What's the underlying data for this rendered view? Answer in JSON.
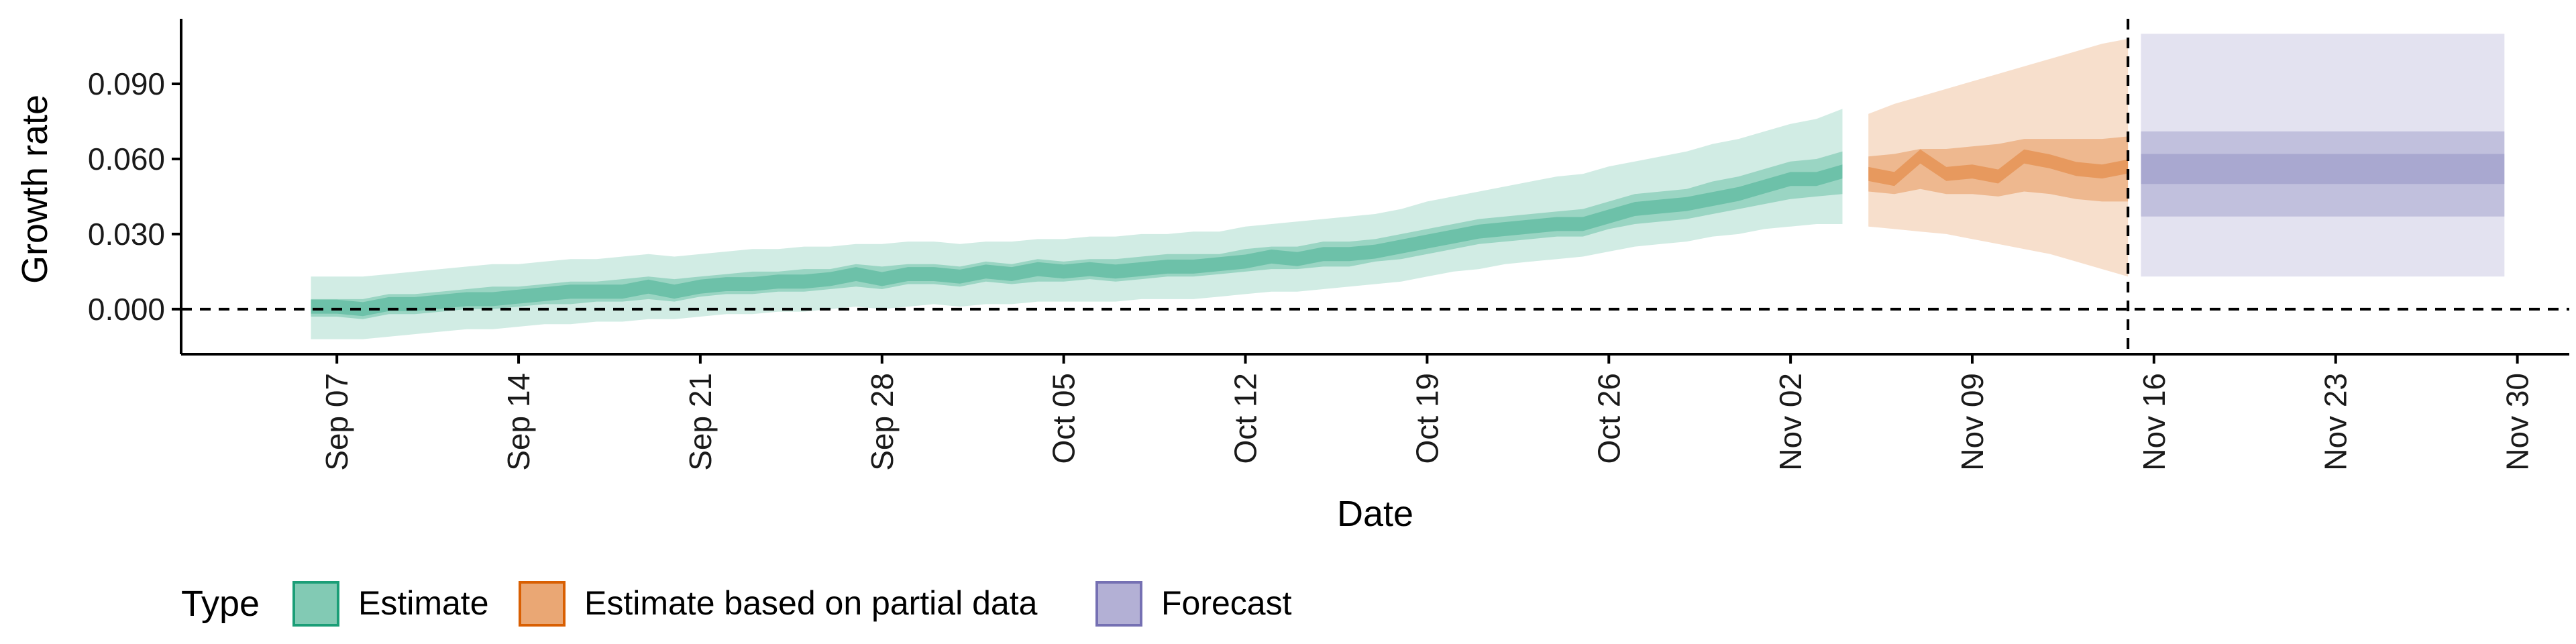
{
  "chart_data": {
    "type": "area",
    "title": "",
    "xlabel": "Date",
    "ylabel": "Growth rate",
    "x_range": [
      "2020-09-01",
      "2020-12-02"
    ],
    "ylim": [
      -0.018,
      0.116
    ],
    "y_ticks": [
      "0.000",
      "0.030",
      "0.060",
      "0.090"
    ],
    "y_tick_values": [
      0,
      0.03,
      0.06,
      0.09
    ],
    "x_ticks": [
      "Sep 07",
      "Sep 14",
      "Sep 21",
      "Sep 28",
      "Oct 05",
      "Oct 12",
      "Oct 19",
      "Oct 26",
      "Nov 02",
      "Nov 09",
      "Nov 16",
      "Nov 23",
      "Nov 30"
    ],
    "x_tick_dates": [
      "2020-09-07",
      "2020-09-14",
      "2020-09-21",
      "2020-09-28",
      "2020-10-05",
      "2020-10-12",
      "2020-10-19",
      "2020-10-26",
      "2020-11-02",
      "2020-11-09",
      "2020-11-16",
      "2020-11-23",
      "2020-11-30"
    ],
    "reference_line_y": 0,
    "reference_line_date": "2020-11-15",
    "legend": {
      "title": "Type",
      "position": "bottom",
      "entries": [
        "Estimate",
        "Estimate based on partial data",
        "Forecast"
      ]
    },
    "colors": {
      "Estimate": "#1b9e77",
      "Estimate based on partial data": "#d95f02",
      "Forecast": "#7570b3"
    },
    "series": [
      {
        "name": "Estimate",
        "x": [
          "2020-09-06",
          "2020-09-07",
          "2020-09-08",
          "2020-09-09",
          "2020-09-10",
          "2020-09-11",
          "2020-09-12",
          "2020-09-13",
          "2020-09-14",
          "2020-09-15",
          "2020-09-16",
          "2020-09-17",
          "2020-09-18",
          "2020-09-19",
          "2020-09-20",
          "2020-09-21",
          "2020-09-22",
          "2020-09-23",
          "2020-09-24",
          "2020-09-25",
          "2020-09-26",
          "2020-09-27",
          "2020-09-28",
          "2020-09-29",
          "2020-09-30",
          "2020-10-01",
          "2020-10-02",
          "2020-10-03",
          "2020-10-04",
          "2020-10-05",
          "2020-10-06",
          "2020-10-07",
          "2020-10-08",
          "2020-10-09",
          "2020-10-10",
          "2020-10-11",
          "2020-10-12",
          "2020-10-13",
          "2020-10-14",
          "2020-10-15",
          "2020-10-16",
          "2020-10-17",
          "2020-10-18",
          "2020-10-19",
          "2020-10-20",
          "2020-10-21",
          "2020-10-22",
          "2020-10-23",
          "2020-10-24",
          "2020-10-25",
          "2020-10-26",
          "2020-10-27",
          "2020-10-28",
          "2020-10-29",
          "2020-10-30",
          "2020-10-31",
          "2020-11-01",
          "2020-11-02",
          "2020-11-03",
          "2020-11-04"
        ],
        "median": [
          0.001,
          0.001,
          0.0,
          0.002,
          0.002,
          0.003,
          0.004,
          0.004,
          0.005,
          0.006,
          0.007,
          0.007,
          0.007,
          0.009,
          0.007,
          0.009,
          0.01,
          0.01,
          0.011,
          0.011,
          0.012,
          0.014,
          0.012,
          0.014,
          0.014,
          0.013,
          0.015,
          0.014,
          0.016,
          0.015,
          0.016,
          0.015,
          0.016,
          0.017,
          0.017,
          0.018,
          0.019,
          0.021,
          0.02,
          0.022,
          0.022,
          0.023,
          0.025,
          0.027,
          0.029,
          0.031,
          0.032,
          0.033,
          0.034,
          0.034,
          0.037,
          0.04,
          0.041,
          0.042,
          0.044,
          0.046,
          0.049,
          0.052,
          0.052,
          0.055
        ],
        "lower50": [
          -0.003,
          -0.003,
          -0.004,
          -0.002,
          -0.002,
          -0.001,
          0.0,
          0.0,
          0.001,
          0.002,
          0.002,
          0.003,
          0.003,
          0.004,
          0.003,
          0.005,
          0.006,
          0.006,
          0.007,
          0.007,
          0.008,
          0.009,
          0.008,
          0.01,
          0.01,
          0.009,
          0.011,
          0.01,
          0.011,
          0.011,
          0.012,
          0.011,
          0.012,
          0.013,
          0.013,
          0.014,
          0.015,
          0.016,
          0.016,
          0.017,
          0.017,
          0.019,
          0.02,
          0.022,
          0.024,
          0.026,
          0.027,
          0.028,
          0.029,
          0.029,
          0.032,
          0.034,
          0.035,
          0.036,
          0.038,
          0.04,
          0.042,
          0.044,
          0.045,
          0.046
        ],
        "upper50": [
          0.004,
          0.004,
          0.004,
          0.006,
          0.006,
          0.007,
          0.008,
          0.009,
          0.009,
          0.01,
          0.011,
          0.011,
          0.012,
          0.013,
          0.012,
          0.013,
          0.014,
          0.015,
          0.015,
          0.016,
          0.016,
          0.018,
          0.017,
          0.018,
          0.018,
          0.017,
          0.019,
          0.018,
          0.02,
          0.019,
          0.02,
          0.02,
          0.021,
          0.022,
          0.022,
          0.022,
          0.024,
          0.025,
          0.025,
          0.027,
          0.027,
          0.028,
          0.03,
          0.032,
          0.034,
          0.036,
          0.037,
          0.038,
          0.039,
          0.04,
          0.043,
          0.046,
          0.047,
          0.048,
          0.051,
          0.053,
          0.056,
          0.059,
          0.06,
          0.063
        ],
        "lower90": [
          -0.012,
          -0.012,
          -0.012,
          -0.011,
          -0.01,
          -0.009,
          -0.008,
          -0.008,
          -0.007,
          -0.006,
          -0.006,
          -0.005,
          -0.005,
          -0.004,
          -0.004,
          -0.003,
          -0.002,
          -0.002,
          -0.001,
          -0.001,
          0.0,
          0.001,
          0.0,
          0.001,
          0.002,
          0.001,
          0.002,
          0.002,
          0.003,
          0.003,
          0.003,
          0.003,
          0.004,
          0.004,
          0.004,
          0.005,
          0.006,
          0.007,
          0.007,
          0.008,
          0.009,
          0.01,
          0.011,
          0.013,
          0.015,
          0.016,
          0.018,
          0.019,
          0.02,
          0.021,
          0.023,
          0.025,
          0.026,
          0.027,
          0.029,
          0.03,
          0.032,
          0.033,
          0.034,
          0.034
        ],
        "upper90": [
          0.013,
          0.013,
          0.013,
          0.014,
          0.015,
          0.016,
          0.017,
          0.018,
          0.018,
          0.019,
          0.02,
          0.02,
          0.021,
          0.022,
          0.021,
          0.022,
          0.023,
          0.024,
          0.024,
          0.025,
          0.025,
          0.026,
          0.026,
          0.027,
          0.027,
          0.026,
          0.027,
          0.027,
          0.028,
          0.028,
          0.029,
          0.029,
          0.03,
          0.03,
          0.031,
          0.031,
          0.033,
          0.034,
          0.035,
          0.036,
          0.037,
          0.038,
          0.04,
          0.043,
          0.045,
          0.047,
          0.049,
          0.051,
          0.053,
          0.054,
          0.057,
          0.059,
          0.061,
          0.063,
          0.066,
          0.068,
          0.071,
          0.074,
          0.076,
          0.08
        ]
      },
      {
        "name": "Estimate based on partial data",
        "x": [
          "2020-11-05",
          "2020-11-06",
          "2020-11-07",
          "2020-11-08",
          "2020-11-09",
          "2020-11-10",
          "2020-11-11",
          "2020-11-12",
          "2020-11-13",
          "2020-11-14",
          "2020-11-15"
        ],
        "median": [
          0.054,
          0.052,
          0.061,
          0.054,
          0.055,
          0.053,
          0.061,
          0.059,
          0.056,
          0.055,
          0.057
        ],
        "lower50": [
          0.047,
          0.046,
          0.048,
          0.046,
          0.046,
          0.045,
          0.047,
          0.046,
          0.044,
          0.043,
          0.043
        ],
        "upper50": [
          0.061,
          0.062,
          0.064,
          0.064,
          0.065,
          0.066,
          0.068,
          0.068,
          0.068,
          0.068,
          0.069
        ],
        "lower90": [
          0.033,
          0.032,
          0.031,
          0.03,
          0.028,
          0.026,
          0.024,
          0.022,
          0.019,
          0.016,
          0.013
        ],
        "upper90": [
          0.078,
          0.082,
          0.085,
          0.088,
          0.091,
          0.094,
          0.097,
          0.1,
          0.103,
          0.106,
          0.108
        ]
      },
      {
        "name": "Forecast",
        "x": [
          "2020-11-16",
          "2020-11-29"
        ],
        "median": [
          0.056,
          0.056
        ],
        "lower25": [
          0.05,
          0.05
        ],
        "upper25": [
          0.062,
          0.062
        ],
        "lower50": [
          0.037,
          0.037
        ],
        "upper50": [
          0.071,
          0.071
        ],
        "lower90": [
          0.013,
          0.013
        ],
        "upper90": [
          0.11,
          0.11
        ]
      }
    ]
  }
}
